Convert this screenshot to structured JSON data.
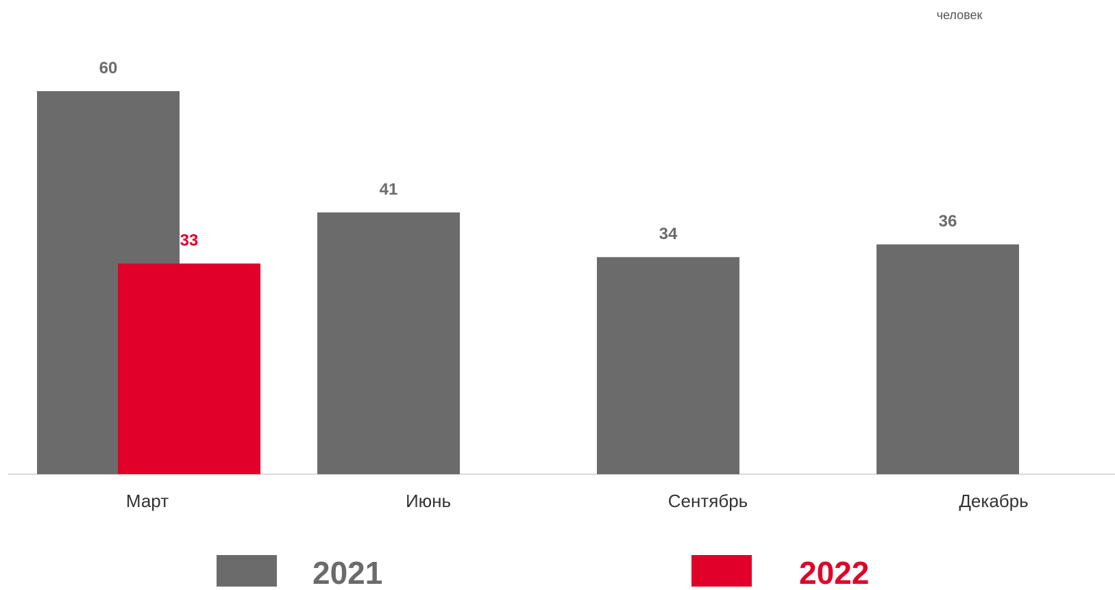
{
  "chart_data": {
    "type": "bar",
    "unit_label": "человек",
    "categories": [
      "Март",
      "Июнь",
      "Сентябрь",
      "Декабрь"
    ],
    "series": [
      {
        "name": "2021",
        "color": "#6b6b6b",
        "values": [
          60,
          41,
          34,
          36
        ]
      },
      {
        "name": "2022",
        "color": "#e0002a",
        "values": [
          33,
          null,
          null,
          null
        ]
      }
    ],
    "ylim": [
      0,
      60
    ],
    "grid": false,
    "legend_position": "bottom",
    "data_labels": true
  }
}
